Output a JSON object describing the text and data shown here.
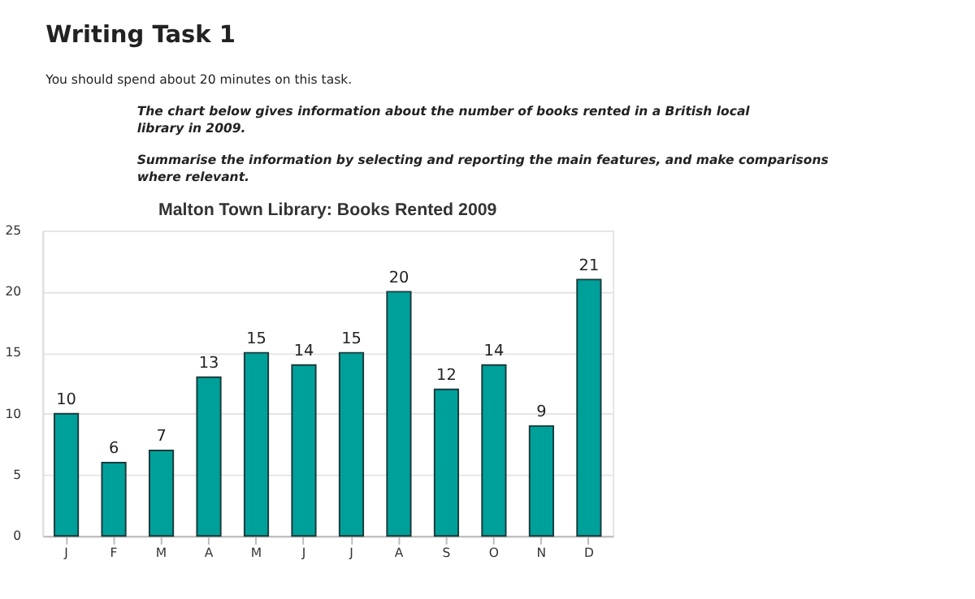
{
  "chart_data": {
    "type": "bar",
    "title": "Malton Town Library: Books Rented 2009",
    "annotations": [
      "Writing Task 1",
      "You should spend about 20 minutes on this task.",
      "The chart below gives information about the number of books rented in a British local library in 2009.",
      "Summarise the information by selecting and reporting the main features, and make comparisons where relevant."
    ],
    "categories": [
      "J",
      "F",
      "M",
      "A",
      "M",
      "J",
      "J",
      "A",
      "S",
      "O",
      "N",
      "D"
    ],
    "values": [
      10,
      6,
      7,
      13,
      15,
      14,
      15,
      20,
      12,
      14,
      9,
      21
    ],
    "color": "#00a09a",
    "ylim": [
      0,
      25
    ],
    "yticks": [
      0,
      5,
      10,
      15,
      20,
      25
    ],
    "grid": "y",
    "data_labels": true
  }
}
